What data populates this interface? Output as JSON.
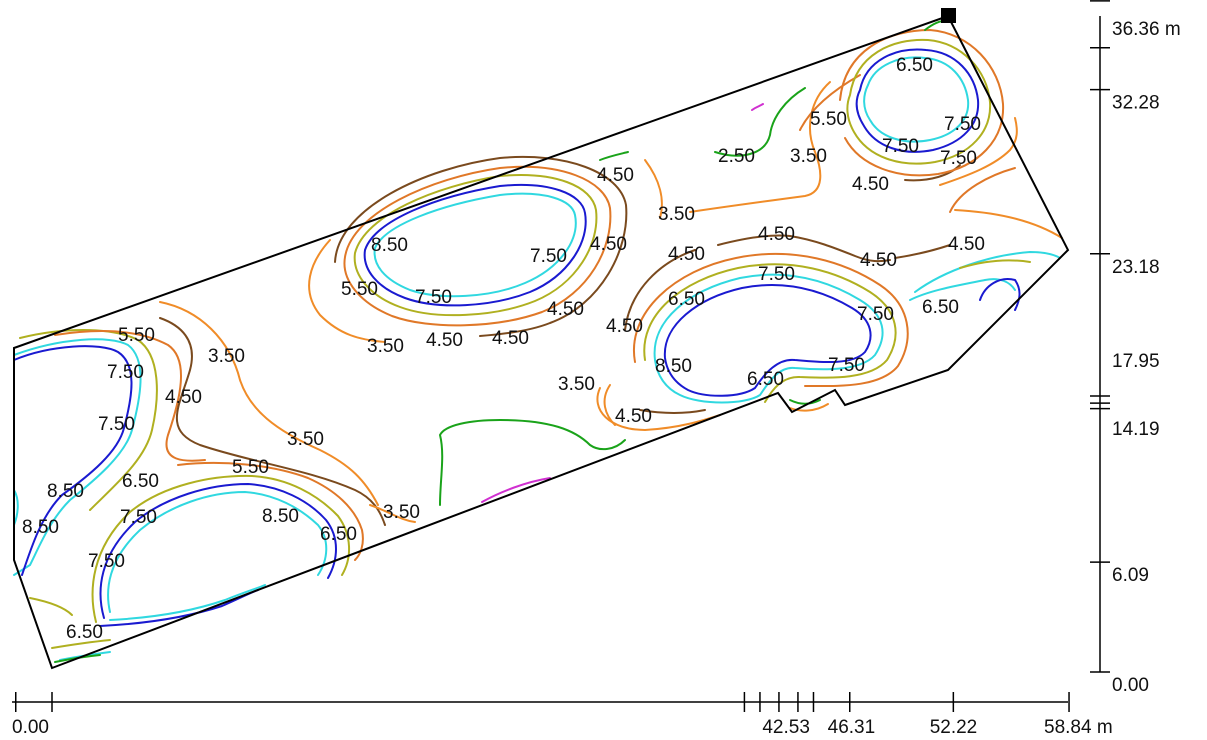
{
  "colors": {
    "c2_5": "#1aa31a",
    "c3_5": "#f08c28",
    "c4_5": "#7a4a1e",
    "c5_5": "#e07828",
    "c6_5": "#b0b020",
    "c7_5": "#1a1ad0",
    "c8_5": "#30d8e0",
    "extra": "#d030d0",
    "boundary": "#000000"
  },
  "x_axis": {
    "unit": "m",
    "labels": [
      {
        "value": 0,
        "text": "0.00"
      },
      {
        "value": 42.53,
        "text": "42.53"
      },
      {
        "value": 46.31,
        "text": "46.31"
      },
      {
        "value": 52.22,
        "text": "52.22"
      },
      {
        "value": 58.84,
        "text": "58.84 m"
      }
    ],
    "minor_ticks": [
      -2.1,
      0,
      40.1,
      41.0,
      42.1,
      43.2,
      44.1,
      46.2,
      52.2,
      58.9
    ]
  },
  "y_axis": {
    "unit": "m",
    "labels": [
      {
        "value": 0,
        "text": "0.00"
      },
      {
        "value": 6.09,
        "text": "6.09"
      },
      {
        "value": 14.19,
        "text": "14.19"
      },
      {
        "value": 17.95,
        "text": "17.95"
      },
      {
        "value": 23.18,
        "text": "23.18"
      },
      {
        "value": 32.28,
        "text": "32.28"
      },
      {
        "value": 36.36,
        "text": "36.36 m"
      }
    ],
    "minor_ticks": [
      0,
      6.09,
      14.6,
      14.9,
      15.3,
      23.18,
      32.28,
      34.6,
      37.2
    ]
  },
  "contour_labels": [
    "2.50",
    "3.50",
    "3.50",
    "3.50",
    "3.50",
    "3.50",
    "3.50",
    "3.50",
    "4.50",
    "4.50",
    "4.50",
    "4.50",
    "4.50",
    "4.50",
    "4.50",
    "4.50",
    "4.50",
    "4.50",
    "4.50",
    "4.50",
    "4.50",
    "5.50",
    "5.50",
    "5.50",
    "5.50",
    "6.50",
    "6.50",
    "6.50",
    "6.50",
    "6.50",
    "6.50",
    "6.50",
    "7.50",
    "7.50",
    "7.50",
    "7.50",
    "7.50",
    "7.50",
    "7.50",
    "7.50",
    "7.50",
    "7.50",
    "7.50",
    "7.50",
    "8.50",
    "8.50",
    "8.50",
    "8.50",
    "8.50"
  ]
}
